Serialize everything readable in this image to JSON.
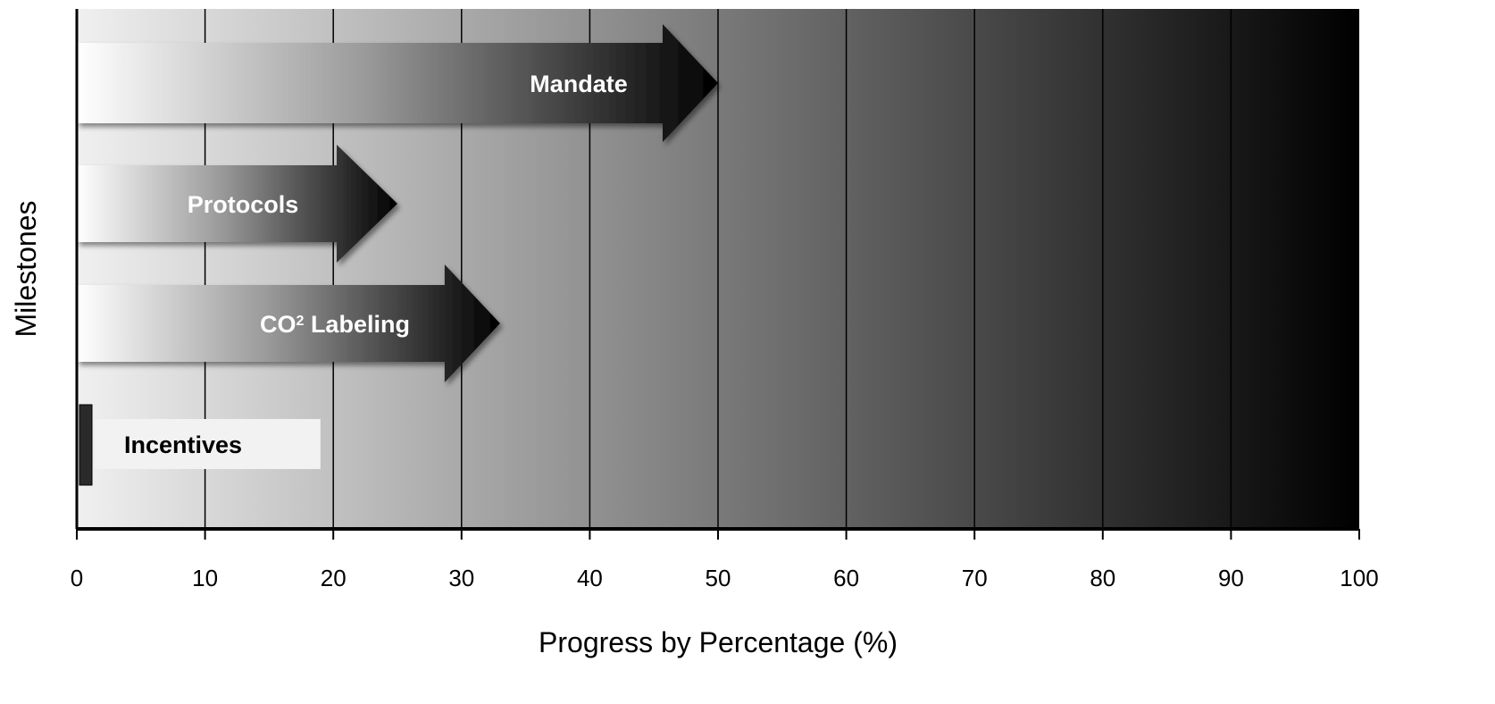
{
  "chart_data": {
    "type": "bar",
    "xlabel": "Progress by Percentage (%)",
    "ylabel": "Milestones",
    "xlim": [
      0,
      100
    ],
    "x_ticks": [
      "0",
      "10",
      "20",
      "30",
      "40",
      "50",
      "60",
      "70",
      "80",
      "90",
      "100"
    ],
    "grid": "vertical lines every 10",
    "background": "horizontal gradient from light gray at 0 to black at 100",
    "orientation": "horizontal",
    "categories": [
      "Mandate",
      "Protocols",
      "CO2 Labeling",
      "Incentives"
    ],
    "bars": [
      {
        "label_main": "Mandate",
        "label_sup": "",
        "label_tail": "",
        "value": 50,
        "style": "arrow"
      },
      {
        "label_main": "Protocols",
        "label_sup": "",
        "label_tail": "",
        "value": 25,
        "style": "arrow"
      },
      {
        "label_main": "CO",
        "label_sup": "2",
        "label_tail": " Labeling",
        "value": 33,
        "style": "arrow"
      },
      {
        "label_main": "Incentives",
        "label_sup": "",
        "label_tail": "",
        "value": 19,
        "style": "box"
      }
    ],
    "colors": {
      "background_start": "#f0f0f0",
      "background_end": "#000000",
      "arrow_start": "#ffffff",
      "arrow_end": "#000000",
      "axis": "#000000"
    }
  }
}
